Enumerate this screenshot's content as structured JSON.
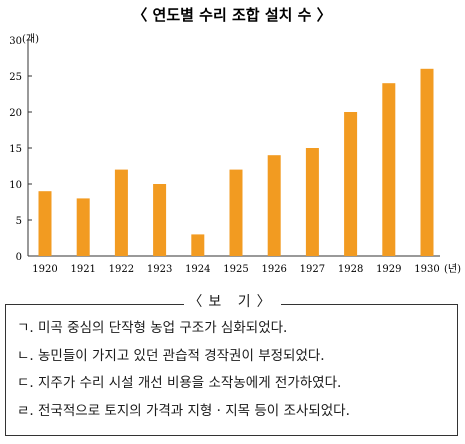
{
  "chart_data": {
    "type": "bar",
    "title": "〈 연도별 수리 조합 설치 수 〉",
    "ylabel": "(개)",
    "xlabel": "(년)",
    "categories": [
      "1920",
      "1921",
      "1922",
      "1923",
      "1924",
      "1925",
      "1926",
      "1927",
      "1928",
      "1929",
      "1930"
    ],
    "values": [
      9,
      8,
      12,
      10,
      3,
      12,
      14,
      15,
      20,
      24,
      26
    ],
    "ylim": [
      0,
      30
    ],
    "yticks": [
      0,
      5,
      10,
      15,
      20,
      25,
      30
    ],
    "bar_color": "#f29b21",
    "grid": false
  },
  "box": {
    "title": "보 기",
    "items": [
      {
        "marker": "ㄱ.",
        "text": "미곡 중심의 단작형 농업 구조가 심화되었다."
      },
      {
        "marker": "ㄴ.",
        "text": "농민들이 가지고 있던 관습적 경작권이 부정되었다."
      },
      {
        "marker": "ㄷ.",
        "text": "지주가 수리 시설 개선 비용을 소작농에게 전가하였다."
      },
      {
        "marker": "ㄹ.",
        "text": "전국적으로 토지의 가격과 지형 · 지목 등이 조사되었다."
      }
    ]
  }
}
